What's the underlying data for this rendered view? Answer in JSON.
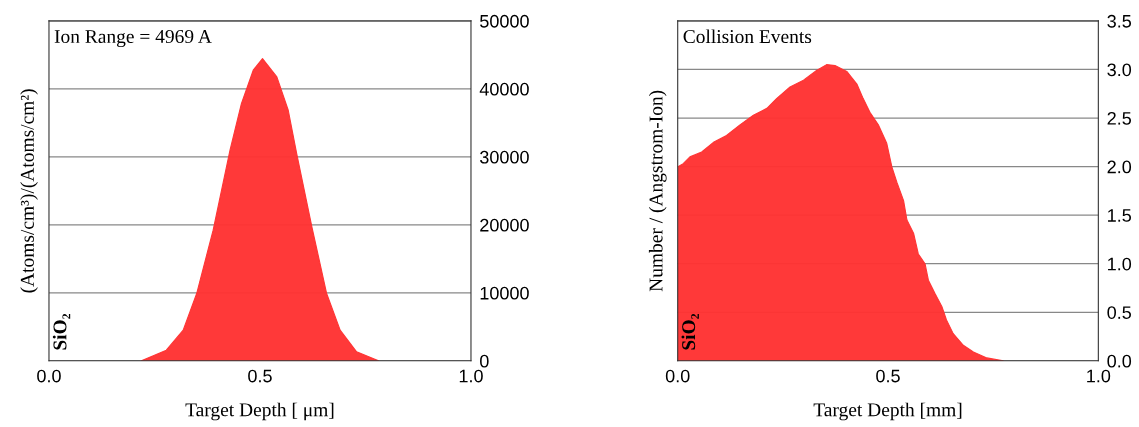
{
  "chart_data": [
    {
      "type": "area",
      "xlabel": "Target Depth [ μm]",
      "ylabel": "(Atoms/cm³)/(Atoms/cm²)",
      "annotations": [
        "Ion Range = 4969 A",
        "SiO₂"
      ],
      "x": [
        0.219,
        0.278,
        0.318,
        0.35,
        0.389,
        0.429,
        0.456,
        0.484,
        0.506,
        0.54,
        0.567,
        0.587,
        0.623,
        0.658,
        0.69,
        0.729,
        0.781
      ],
      "series": [
        {
          "color": "#ff3333",
          "values": [
            0,
            1570,
            4510,
            9900,
            19220,
            30980,
            37840,
            42750,
            44460,
            41760,
            36860,
            30490,
            19710,
            9900,
            4510,
            1320,
            0
          ]
        }
      ],
      "xlim": [
        0,
        1
      ],
      "xticks": [
        {
          "value": 0,
          "label": "0.0"
        },
        {
          "value": 0.5,
          "label": "0.5"
        },
        {
          "value": 1,
          "label": "1.0"
        }
      ],
      "ylim": [
        0,
        50000
      ],
      "yticks": [
        0,
        10000,
        20000,
        30000,
        40000,
        50000
      ],
      "grid": "y"
    },
    {
      "type": "area",
      "xlabel": "Target Depth [mm]",
      "ylabel": "Number / (Angstrom-Ion)",
      "annotations": [
        "Collision Events",
        "SiO₂"
      ],
      "x": [
        0.0,
        0.0016,
        0.013,
        0.029,
        0.057,
        0.085,
        0.116,
        0.148,
        0.18,
        0.212,
        0.235,
        0.267,
        0.299,
        0.33,
        0.354,
        0.374,
        0.402,
        0.426,
        0.441,
        0.457,
        0.477,
        0.497,
        0.509,
        0.521,
        0.537,
        0.545,
        0.561,
        0.572,
        0.588,
        0.596,
        0.612,
        0.628,
        0.639,
        0.655,
        0.679,
        0.703,
        0.735,
        0.774
      ],
      "series": [
        {
          "color": "#ff3333",
          "values": [
            0,
            2.0,
            2.03,
            2.1,
            2.15,
            2.25,
            2.32,
            2.43,
            2.53,
            2.6,
            2.7,
            2.82,
            2.89,
            2.99,
            3.05,
            3.04,
            2.98,
            2.85,
            2.7,
            2.56,
            2.43,
            2.24,
            2.0,
            1.84,
            1.65,
            1.45,
            1.31,
            1.1,
            1.0,
            0.83,
            0.69,
            0.56,
            0.42,
            0.28,
            0.16,
            0.09,
            0.03,
            0
          ]
        }
      ],
      "xlim": [
        0,
        1
      ],
      "xticks": [
        {
          "value": 0,
          "label": "0.0"
        },
        {
          "value": 0.5,
          "label": "0.5"
        },
        {
          "value": 1,
          "label": "1.0"
        }
      ],
      "ylim": [
        0,
        3.5
      ],
      "yticks": [
        {
          "value": 0,
          "label": "0.0"
        },
        {
          "value": 0.5,
          "label": "0.5"
        },
        {
          "value": 1,
          "label": "1.0"
        },
        {
          "value": 1.5,
          "label": "1.5"
        },
        {
          "value": 2,
          "label": "2.0"
        },
        {
          "value": 2.5,
          "label": "2.5"
        },
        {
          "value": 3,
          "label": "3.0"
        },
        {
          "value": 3.5,
          "label": "3.5"
        }
      ],
      "grid": "y"
    }
  ]
}
